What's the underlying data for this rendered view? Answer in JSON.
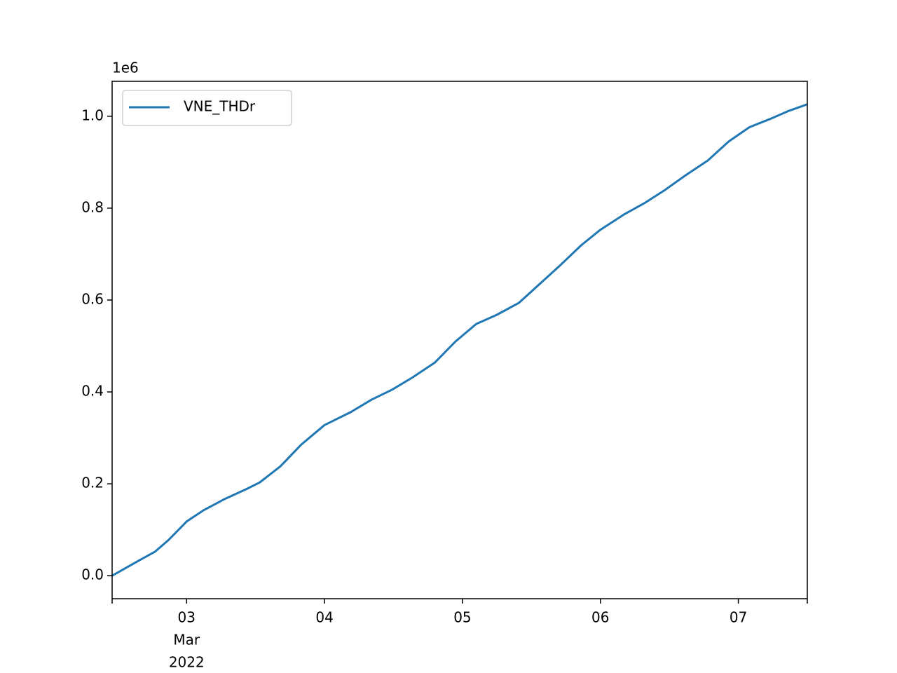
{
  "chart_data": {
    "type": "line",
    "y_offset_label": "1e6",
    "x": [
      2.46,
      2.56,
      2.66,
      2.77,
      2.87,
      3.0,
      3.12,
      3.27,
      3.43,
      3.53,
      3.68,
      3.83,
      4.0,
      4.19,
      4.34,
      4.49,
      4.64,
      4.8,
      4.95,
      5.1,
      5.25,
      5.41,
      5.56,
      5.71,
      5.86,
      6.0,
      6.17,
      6.32,
      6.47,
      6.62,
      6.78,
      6.93,
      7.08,
      7.23,
      7.36,
      7.5
    ],
    "series": [
      {
        "name": "VNE_THDr",
        "color": "#1f77b4",
        "values": [
          0,
          17000,
          34000,
          52000,
          78000,
          118000,
          142000,
          166000,
          188000,
          203000,
          238000,
          285000,
          328000,
          356000,
          383000,
          405000,
          432000,
          464000,
          510000,
          548000,
          568000,
          594000,
          635000,
          676000,
          719000,
          753000,
          786000,
          811000,
          840000,
          872000,
          904000,
          945000,
          976000,
          994000,
          1011000,
          1026000
        ]
      }
    ],
    "xlim": [
      2.46,
      7.5
    ],
    "xticks": [
      {
        "value": 3,
        "label": "03"
      },
      {
        "value": 4,
        "label": "04"
      },
      {
        "value": 5,
        "label": "05"
      },
      {
        "value": 6,
        "label": "06"
      },
      {
        "value": 7,
        "label": "07"
      }
    ],
    "x_sublabels": [
      "Mar",
      "2022"
    ],
    "ylim": [
      -50000,
      1076000
    ],
    "yticks": [
      {
        "value": 0,
        "label": "0.0"
      },
      {
        "value": 200000,
        "label": "0.2"
      },
      {
        "value": 400000,
        "label": "0.4"
      },
      {
        "value": 600000,
        "label": "0.6"
      },
      {
        "value": 800000,
        "label": "0.8"
      },
      {
        "value": 1000000,
        "label": "1.0"
      }
    ],
    "grid": false,
    "legend": "upper left"
  }
}
